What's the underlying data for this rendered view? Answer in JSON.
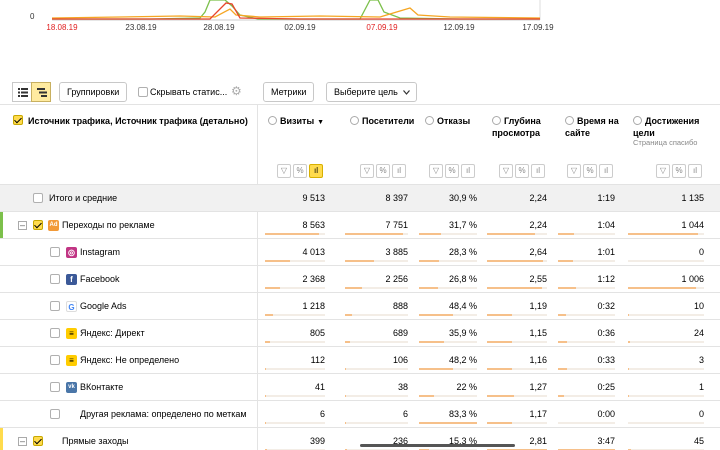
{
  "chart": {
    "y_label": "0",
    "x_labels": [
      {
        "text": "18.08.19",
        "weekend": true
      },
      {
        "text": "23.08.19",
        "weekend": false
      },
      {
        "text": "28.08.19",
        "weekend": false
      },
      {
        "text": "02.09.19",
        "weekend": false
      },
      {
        "text": "07.09.19",
        "weekend": true
      },
      {
        "text": "12.09.19",
        "weekend": false
      },
      {
        "text": "17.09.19",
        "weekend": false
      }
    ],
    "colors": {
      "green": "#7cc04b",
      "orange": "#f5a623",
      "red": "#e8452c"
    }
  },
  "toolbar": {
    "grouping_label": "Группировки",
    "hide_stats_label": "Скрывать статис...",
    "metrics_label": "Метрики",
    "goal_label": "Выберите цель"
  },
  "table": {
    "dimension_header": "Источник трафика, Источник трафика (детально)",
    "columns": [
      {
        "key": "visits",
        "label": "Визиты",
        "sort": "▼"
      },
      {
        "key": "visitors",
        "label": "Посетители"
      },
      {
        "key": "bounce",
        "label": "Отказы"
      },
      {
        "key": "depth",
        "label": "Глубина просмотра"
      },
      {
        "key": "time",
        "label": "Время на сайте"
      },
      {
        "key": "goals",
        "label": "Достижения цели",
        "sub": "Страница спасибо"
      }
    ],
    "rows": [
      {
        "name": "Итого и средние",
        "visits": "9 513",
        "visitors": "8 397",
        "bounce": "30,9 %",
        "depth": "2,24",
        "time": "1:19",
        "goals": "1 135",
        "type": "total"
      },
      {
        "name": "Переходы по рекламе",
        "visits": "8 563",
        "visitors": "7 751",
        "bounce": "31,7 %",
        "depth": "2,24",
        "time": "1:04",
        "goals": "1 044",
        "type": "group",
        "icon": "ad-icon"
      },
      {
        "name": "Instagram",
        "visits": "4 013",
        "visitors": "3 885",
        "bounce": "28,3 %",
        "depth": "2,64",
        "time": "1:01",
        "goals": "0",
        "type": "child",
        "icon": "instagram-icon"
      },
      {
        "name": "Facebook",
        "visits": "2 368",
        "visitors": "2 256",
        "bounce": "26,8 %",
        "depth": "2,55",
        "time": "1:12",
        "goals": "1 006",
        "type": "child",
        "icon": "facebook-icon"
      },
      {
        "name": "Google Ads",
        "visits": "1 218",
        "visitors": "888",
        "bounce": "48,4 %",
        "depth": "1,19",
        "time": "0:32",
        "goals": "10",
        "type": "child",
        "icon": "google-icon"
      },
      {
        "name": "Яндекс: Директ",
        "visits": "805",
        "visitors": "689",
        "bounce": "35,9 %",
        "depth": "1,15",
        "time": "0:36",
        "goals": "24",
        "type": "child",
        "icon": "yandex-direct-icon"
      },
      {
        "name": "Яндекс: Не определено",
        "visits": "112",
        "visitors": "106",
        "bounce": "48,2 %",
        "depth": "1,16",
        "time": "0:33",
        "goals": "3",
        "type": "child",
        "icon": "yandex-direct-icon"
      },
      {
        "name": "ВКонтакте",
        "visits": "41",
        "visitors": "38",
        "bounce": "22 %",
        "depth": "1,27",
        "time": "0:25",
        "goals": "1",
        "type": "child",
        "icon": "vk-icon"
      },
      {
        "name": "Другая реклама: определено по меткам",
        "visits": "6",
        "visitors": "6",
        "bounce": "83,3 %",
        "depth": "1,17",
        "time": "0:00",
        "goals": "0",
        "type": "child",
        "icon": ""
      },
      {
        "name": "Прямые заходы",
        "visits": "399",
        "visitors": "236",
        "bounce": "15,3 %",
        "depth": "2,81",
        "time": "3:47",
        "goals": "45",
        "type": "group",
        "icon": ""
      }
    ],
    "bar_fractions": {
      "visits": [
        1,
        0.9,
        0.42,
        0.25,
        0.13,
        0.085,
        0.012,
        0.004,
        0.001,
        0.04
      ],
      "visitors": [
        1,
        0.92,
        0.46,
        0.27,
        0.11,
        0.08,
        0.013,
        0.005,
        0.001,
        0.03
      ],
      "bounce": [
        0.37,
        0.38,
        0.34,
        0.32,
        0.58,
        0.43,
        0.58,
        0.26,
        1,
        0.18
      ],
      "depth": [
        0.8,
        0.8,
        0.94,
        0.91,
        0.42,
        0.41,
        0.41,
        0.45,
        0.42,
        1
      ],
      "time": [
        0.35,
        0.28,
        0.27,
        0.32,
        0.14,
        0.16,
        0.15,
        0.11,
        0.0,
        1
      ],
      "goals": [
        1,
        0.92,
        0,
        0.89,
        0.01,
        0.02,
        0.003,
        0.001,
        0,
        0.04
      ]
    }
  }
}
